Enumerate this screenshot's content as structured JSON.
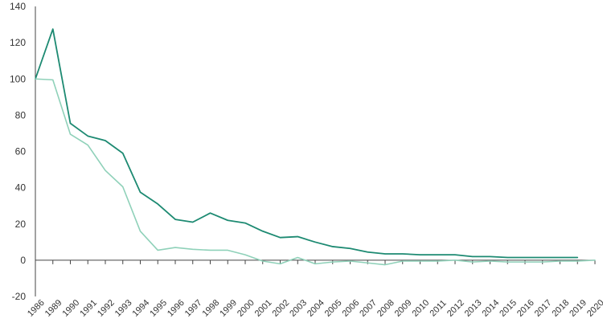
{
  "chart_data": {
    "type": "line",
    "title": "",
    "xlabel": "",
    "ylabel": "",
    "categories": [
      "1986",
      "1989",
      "1990",
      "1991",
      "1992",
      "1993",
      "1994",
      "1995",
      "1996",
      "1997",
      "1998",
      "1999",
      "2000",
      "2001",
      "2002",
      "2003",
      "2004",
      "2005",
      "2006",
      "2007",
      "2008",
      "2009",
      "2010",
      "2011",
      "2012",
      "2013",
      "2014",
      "2015",
      "2016",
      "2017",
      "2018",
      "2019",
      "2020"
    ],
    "ylim": [
      -20,
      140
    ],
    "yticks": [
      -20,
      0,
      20,
      40,
      60,
      80,
      100,
      120,
      140
    ],
    "grid": false,
    "legend": "none",
    "series": [
      {
        "color": "#1d8a72",
        "values": [
          100,
          127.5,
          75.5,
          68.5,
          66,
          59,
          37.5,
          31,
          22.5,
          21,
          26,
          22,
          20.5,
          16,
          12.5,
          13,
          10,
          7.5,
          6.5,
          4.5,
          3.5,
          3.5,
          3,
          3,
          3,
          2,
          2,
          1.5,
          1.5,
          1.5,
          1.5,
          1.5,
          null
        ]
      },
      {
        "color": "#8fd1b9",
        "values": [
          100,
          99.5,
          69.5,
          63.5,
          49.5,
          40.5,
          16,
          5.5,
          7,
          6,
          5.5,
          5.5,
          3,
          -0.5,
          -2,
          1.5,
          -2,
          -1,
          -0.5,
          -1.5,
          -2.5,
          -0.5,
          -0.5,
          -0.5,
          0,
          -1,
          -0.5,
          -1,
          -1,
          -1,
          -0.5,
          -0.5,
          0
        ]
      }
    ]
  }
}
